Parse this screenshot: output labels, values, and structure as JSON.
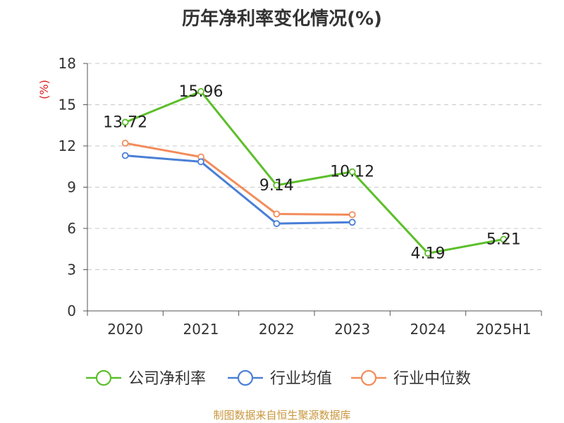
{
  "chart_data": {
    "type": "line",
    "title": "历年净利率变化情况(%)",
    "ylabel": "(%)",
    "xlabel": "",
    "categories": [
      "2020",
      "2021",
      "2022",
      "2023",
      "2024",
      "2025H1"
    ],
    "ylim": [
      0,
      18
    ],
    "yticks": [
      0,
      3,
      6,
      9,
      12,
      15,
      18
    ],
    "grid": "horizontal dashed",
    "legend_position": "bottom",
    "series": [
      {
        "name": "公司净利率",
        "color": "#5cbf2a",
        "values": [
          13.72,
          15.96,
          9.14,
          10.12,
          4.19,
          5.21
        ],
        "labels": [
          "13.72",
          "15.96",
          "9.14",
          "10.12",
          "4.19",
          "5.21"
        ]
      },
      {
        "name": "行业均值",
        "color": "#4a7fd6",
        "values": [
          11.3,
          10.85,
          6.35,
          6.45,
          null,
          null
        ]
      },
      {
        "name": "行业中位数",
        "color": "#f28c5a",
        "values": [
          12.2,
          11.2,
          7.05,
          7.0,
          null,
          null
        ]
      }
    ]
  },
  "footer": {
    "source": "制图数据来自恒生聚源数据库"
  }
}
